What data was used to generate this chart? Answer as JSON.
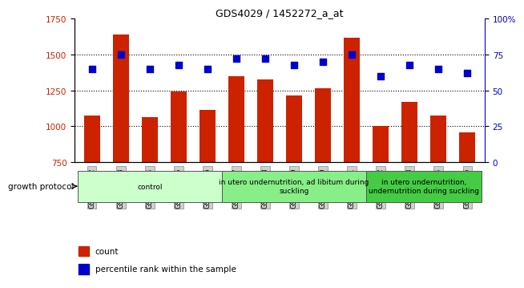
{
  "title": "GDS4029 / 1452272_a_at",
  "samples": [
    "GSM402542",
    "GSM402543",
    "GSM402544",
    "GSM402545",
    "GSM402546",
    "GSM402547",
    "GSM402548",
    "GSM402549",
    "GSM402550",
    "GSM402551",
    "GSM402552",
    "GSM402553",
    "GSM402554",
    "GSM402555"
  ],
  "counts": [
    1075,
    1640,
    1065,
    1245,
    1115,
    1350,
    1325,
    1215,
    1265,
    1620,
    1005,
    1170,
    1075,
    960
  ],
  "percentiles": [
    65,
    75,
    65,
    68,
    65,
    72,
    72,
    68,
    70,
    75,
    60,
    68,
    65,
    62
  ],
  "ylim_left": [
    750,
    1750
  ],
  "ylim_right": [
    0,
    100
  ],
  "yticks_left": [
    750,
    1000,
    1250,
    1500,
    1750
  ],
  "yticks_right": [
    0,
    25,
    50,
    75,
    100
  ],
  "bar_color": "#cc2200",
  "dot_color": "#0000cc",
  "groups": [
    {
      "label": "control",
      "start": 0,
      "end": 4,
      "color": "#ccffcc"
    },
    {
      "label": "in utero undernutrition, ad libitum during\nsuckling",
      "start": 5,
      "end": 9,
      "color": "#88ee88"
    },
    {
      "label": "in utero undernutrition,\nundernutrition during suckling",
      "start": 10,
      "end": 13,
      "color": "#44cc44"
    }
  ],
  "xlabel_protocol": "growth protocol",
  "legend_count": "count",
  "legend_pct": "percentile rank within the sample",
  "bg_color": "#ffffff",
  "tick_bg": "#d0d0d0"
}
